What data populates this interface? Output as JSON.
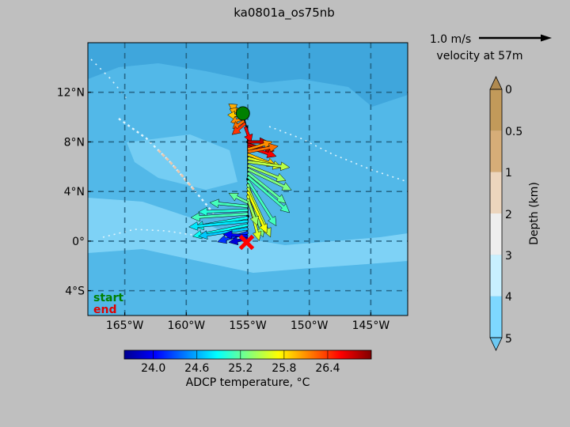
{
  "chart_data": {
    "type": "map",
    "title": "ka0801a_os75nb",
    "map": {
      "lon_range": [
        -168,
        -142
      ],
      "lat_range": [
        -6,
        16
      ],
      "xticks": [
        -165,
        -160,
        -155,
        -150,
        -145
      ],
      "xtick_labels": [
        "165°W",
        "160°W",
        "155°W",
        "150°W",
        "145°W"
      ],
      "yticks": [
        -4,
        0,
        4,
        8,
        12
      ],
      "ytick_labels": [
        "4°S",
        "0°",
        "4°N",
        "8°N",
        "12°N"
      ],
      "grid": true
    },
    "start_label": "start",
    "end_label": "end",
    "start_color": "#008000",
    "end_color": "#e00000",
    "start_position": {
      "lon": -155.4,
      "lat": 10.3
    },
    "end_position": {
      "lon": -155.1,
      "lat": -0.1
    },
    "cruise_track": [
      {
        "lon": -155.4,
        "lat": 10.3
      },
      {
        "lon": -155.1,
        "lat": 9.2
      },
      {
        "lon": -155.0,
        "lat": 8.0
      },
      {
        "lon": -155.0,
        "lat": 5.0
      },
      {
        "lon": -155.0,
        "lat": 2.0
      },
      {
        "lon": -155.1,
        "lat": -0.1
      }
    ],
    "velocity": {
      "scale_label": "1.0 m/s",
      "depth_label": "velocity at 57m",
      "vectors": [
        {
          "lon": -155.4,
          "lat": 10.3,
          "u": -0.75,
          "v": 0.5,
          "t": 26.0
        },
        {
          "lon": -155.4,
          "lat": 10.2,
          "u": -0.7,
          "v": 0.3,
          "t": 26.0
        },
        {
          "lon": -155.4,
          "lat": 10.1,
          "u": -0.8,
          "v": 0.05,
          "t": 25.9
        },
        {
          "lon": -155.3,
          "lat": 9.9,
          "u": -0.7,
          "v": -0.2,
          "t": 26.1
        },
        {
          "lon": -155.3,
          "lat": 9.7,
          "u": -0.6,
          "v": -0.4,
          "t": 26.2
        },
        {
          "lon": -155.2,
          "lat": 9.5,
          "u": -0.7,
          "v": -0.6,
          "t": 26.4
        },
        {
          "lon": -155.2,
          "lat": 9.2,
          "u": 0.3,
          "v": -0.8,
          "t": 26.6
        },
        {
          "lon": -155.0,
          "lat": 8.0,
          "u": 1.1,
          "v": 0.0,
          "t": 26.8
        },
        {
          "lon": -155.0,
          "lat": 7.8,
          "u": 1.4,
          "v": -0.35,
          "t": 26.8
        },
        {
          "lon": -155.0,
          "lat": 7.6,
          "u": 1.5,
          "v": -0.5,
          "t": 26.6
        },
        {
          "lon": -155.0,
          "lat": 7.4,
          "u": 1.3,
          "v": 0.4,
          "t": 26.1
        },
        {
          "lon": -155.0,
          "lat": 7.2,
          "u": 1.6,
          "v": 0.3,
          "t": 26.2
        },
        {
          "lon": -155.0,
          "lat": 7.0,
          "u": 1.5,
          "v": -0.6,
          "t": 25.9
        },
        {
          "lon": -155.0,
          "lat": 6.7,
          "u": 1.8,
          "v": -0.5,
          "t": 25.6
        },
        {
          "lon": -155.0,
          "lat": 6.4,
          "u": 2.2,
          "v": -0.3,
          "t": 25.5
        },
        {
          "lon": -155.0,
          "lat": 6.1,
          "u": 2.0,
          "v": -0.8,
          "t": 25.4
        },
        {
          "lon": -155.0,
          "lat": 5.8,
          "u": 2.3,
          "v": -1.1,
          "t": 25.3
        },
        {
          "lon": -155.0,
          "lat": 5.5,
          "u": 2.0,
          "v": -1.6,
          "t": 25.2
        },
        {
          "lon": -155.0,
          "lat": 5.2,
          "u": 2.2,
          "v": -1.9,
          "t": 25.1
        },
        {
          "lon": -155.0,
          "lat": 4.9,
          "u": 1.5,
          "v": -2.4,
          "t": 25.1
        },
        {
          "lon": -155.0,
          "lat": 4.6,
          "u": 0.8,
          "v": -2.8,
          "t": 25.3
        },
        {
          "lon": -155.0,
          "lat": 4.3,
          "u": 1.2,
          "v": -2.6,
          "t": 25.5
        },
        {
          "lon": -155.0,
          "lat": 4.0,
          "u": 1.0,
          "v": -2.2,
          "t": 25.7
        },
        {
          "lon": -155.0,
          "lat": 3.7,
          "u": 0.6,
          "v": -2.4,
          "t": 25.6
        },
        {
          "lon": -155.0,
          "lat": 3.4,
          "u": 0.5,
          "v": -1.4,
          "t": 25.4
        },
        {
          "lon": -155.0,
          "lat": 3.1,
          "u": -1.0,
          "v": 0.5,
          "t": 25.2
        },
        {
          "lon": -155.0,
          "lat": 2.8,
          "u": -2.0,
          "v": 0.2,
          "t": 25.1
        },
        {
          "lon": -155.0,
          "lat": 2.5,
          "u": -2.6,
          "v": -0.1,
          "t": 25.0
        },
        {
          "lon": -155.0,
          "lat": 2.2,
          "u": -3.0,
          "v": -0.2,
          "t": 25.1
        },
        {
          "lon": -155.0,
          "lat": 1.9,
          "u": -2.8,
          "v": -0.5,
          "t": 24.9
        },
        {
          "lon": -155.0,
          "lat": 1.6,
          "u": -3.1,
          "v": -0.3,
          "t": 24.8
        },
        {
          "lon": -155.0,
          "lat": 1.3,
          "u": -2.9,
          "v": -0.6,
          "t": 24.9
        },
        {
          "lon": -155.0,
          "lat": 1.0,
          "u": -2.6,
          "v": -0.4,
          "t": 24.7
        },
        {
          "lon": -155.0,
          "lat": 0.7,
          "u": -1.6,
          "v": -0.5,
          "t": 24.2
        },
        {
          "lon": -155.0,
          "lat": 0.4,
          "u": -1.3,
          "v": 0.1,
          "t": 24.0
        },
        {
          "lon": -155.0,
          "lat": 0.2,
          "u": -1.0,
          "v": -0.2,
          "t": 23.9
        }
      ]
    },
    "temperature_colorbar": {
      "label": "ADCP temperature, °C",
      "range": [
        23.6,
        27.0
      ],
      "ticks": [
        "24.0",
        "24.6",
        "25.2",
        "25.8",
        "26.4"
      ],
      "tick_values": [
        24.0,
        24.6,
        25.2,
        25.8,
        26.4
      ]
    },
    "depth_colorbar": {
      "label": "Depth (km)",
      "ticks": [
        "0",
        "0.5",
        "1",
        "2",
        "3",
        "4",
        "5"
      ],
      "colors": [
        "#c29a5a",
        "#d6ad78",
        "#ecd5bd",
        "#eeeeee",
        "#c8f0ff",
        "#7ed8ff"
      ],
      "extend_colors": [
        "#b08a50",
        "#6cc8f2"
      ]
    }
  }
}
